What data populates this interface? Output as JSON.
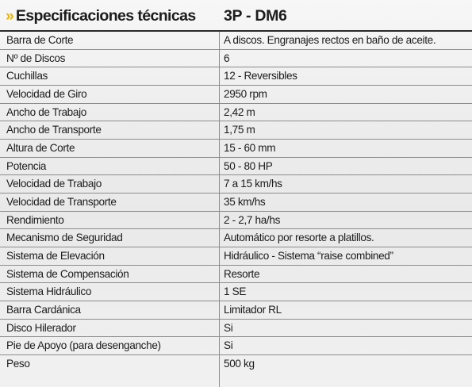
{
  "header": {
    "chevron": "»",
    "title": "Especificaciones técnicas",
    "model": "3P - DM6"
  },
  "rows": [
    {
      "label": "Barra de Corte",
      "value": "A discos. Engranajes rectos en baño de aceite."
    },
    {
      "label": "Nº de Discos",
      "value": "6"
    },
    {
      "label": "Cuchillas",
      "value": "12 - Reversibles"
    },
    {
      "label": "Velocidad de Giro",
      "value": "2950 rpm"
    },
    {
      "label": "Ancho de Trabajo",
      "value": "2,42 m"
    },
    {
      "label": "Ancho de Transporte",
      "value": "1,75 m"
    },
    {
      "label": "Altura de Corte",
      "value": "15 - 60 mm"
    },
    {
      "label": "Potencia",
      "value": "50 - 80 HP"
    },
    {
      "label": "Velocidad de Trabajo",
      "value": "7 a 15 km/hs"
    },
    {
      "label": "Velocidad de Transporte",
      "value": "35 km/hs"
    },
    {
      "label": "Rendimiento",
      "value": "2 - 2,7 ha/hs"
    },
    {
      "label": "Mecanismo de Seguridad",
      "value": "Automático por resorte a platillos."
    },
    {
      "label": "Sistema de Elevación",
      "value": "Hidráulico - Sistema “raise combined”"
    },
    {
      "label": "Sistema de Compensación",
      "value": "Resorte"
    },
    {
      "label": "Sistema Hidráulico",
      "value": "1 SE"
    },
    {
      "label": "Barra Cardánica",
      "value": "Limitador RL"
    },
    {
      "label": "Disco Hilerador",
      "value": "Si"
    },
    {
      "label": "Pie de Apoyo (para desenganche)",
      "value": "Si"
    },
    {
      "label": "Peso",
      "value": "500 kg"
    }
  ],
  "colors": {
    "accent": "#e9b50a",
    "text": "#1c1c1c",
    "rule": "#8c8c8c"
  }
}
